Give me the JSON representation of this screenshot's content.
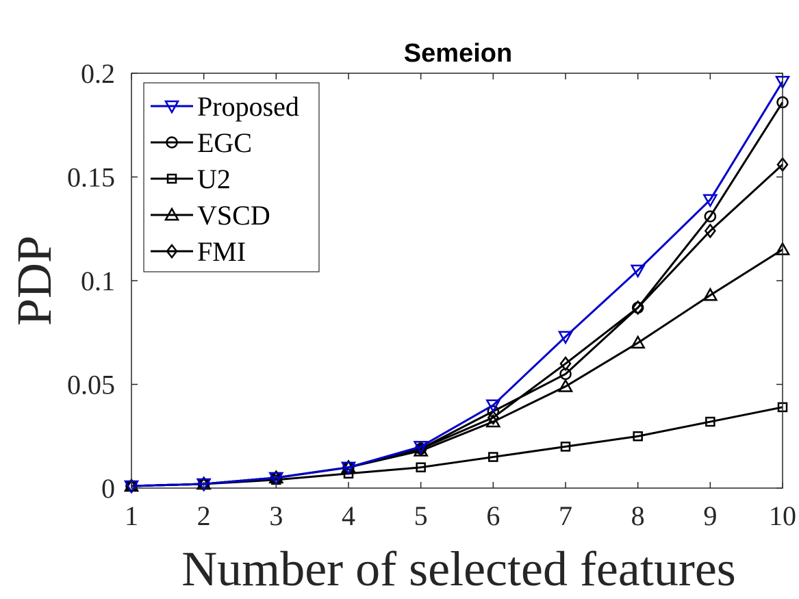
{
  "chart_data": {
    "type": "line",
    "title": "Semeion",
    "xlabel": "Number of selected features",
    "ylabel": "PDP",
    "x": [
      1,
      2,
      3,
      4,
      5,
      6,
      7,
      8,
      9,
      10
    ],
    "xlim": [
      1,
      10
    ],
    "ylim": [
      0,
      0.2
    ],
    "xticks": [
      1,
      2,
      3,
      4,
      5,
      6,
      7,
      8,
      9,
      10
    ],
    "xtick_labels": [
      "1",
      "2",
      "3",
      "4",
      "5",
      "6",
      "7",
      "8",
      "9",
      "10"
    ],
    "yticks": [
      0,
      0.05,
      0.1,
      0.15,
      0.2
    ],
    "ytick_labels": [
      "0",
      "0.05",
      "0.1",
      "0.15",
      "0.2"
    ],
    "grid": false,
    "legend_position": "top-left",
    "series": [
      {
        "name": "Proposed",
        "color": "#0000cc",
        "marker": "triangle-down",
        "values": [
          0.001,
          0.002,
          0.005,
          0.01,
          0.02,
          0.04,
          0.073,
          0.105,
          0.139,
          0.196
        ]
      },
      {
        "name": "EGC",
        "color": "#000000",
        "marker": "circle",
        "values": [
          0.001,
          0.002,
          0.005,
          0.01,
          0.019,
          0.037,
          0.055,
          0.087,
          0.131,
          0.186
        ]
      },
      {
        "name": "U2",
        "color": "#000000",
        "marker": "square",
        "values": [
          0.001,
          0.002,
          0.004,
          0.007,
          0.01,
          0.015,
          0.02,
          0.025,
          0.032,
          0.039
        ]
      },
      {
        "name": "VSCD",
        "color": "#000000",
        "marker": "triangle-up",
        "values": [
          0.001,
          0.002,
          0.005,
          0.01,
          0.018,
          0.032,
          0.049,
          0.07,
          0.093,
          0.115
        ]
      },
      {
        "name": "FMI",
        "color": "#000000",
        "marker": "diamond",
        "values": [
          0.001,
          0.002,
          0.005,
          0.01,
          0.019,
          0.034,
          0.06,
          0.087,
          0.124,
          0.156
        ]
      }
    ]
  }
}
